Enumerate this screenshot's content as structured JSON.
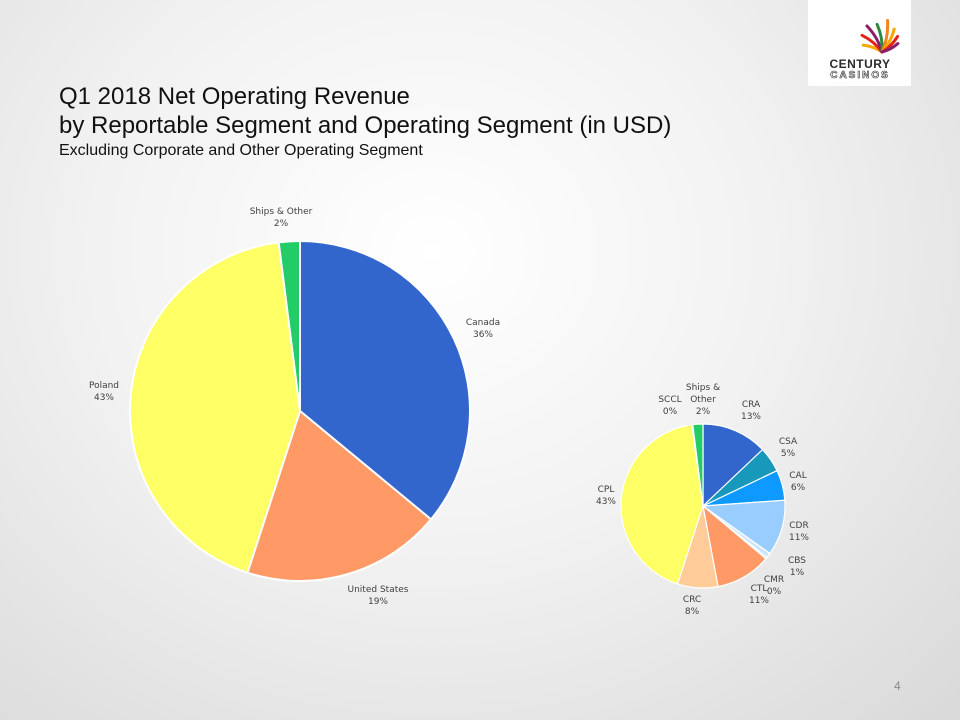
{
  "slide": {
    "title_line1": "Q1 2018 Net Operating Revenue",
    "title_line2": "by Reportable Segment and Operating Segment (in USD)",
    "subtitle": "Excluding Corporate and Other Operating Segment",
    "page_number": "4"
  },
  "logo": {
    "line1": "CENTURY",
    "line2": "CASINOS",
    "colors": [
      "#f7a800",
      "#e2231a",
      "#8b1e6b",
      "#2d8a3e",
      "#f58220"
    ]
  },
  "chart_data": [
    {
      "type": "pie",
      "title": "",
      "slices": [
        {
          "label": "Canada",
          "display": "36%",
          "value": 36,
          "color": "#3366cc"
        },
        {
          "label": "United States",
          "display": "19%",
          "value": 19,
          "color": "#ff9966"
        },
        {
          "label": "Poland",
          "display": "43%",
          "value": 43,
          "color": "#ffff66"
        },
        {
          "label": "Ships & Other",
          "display": "2%",
          "value": 2,
          "color": "#22cc66"
        }
      ]
    },
    {
      "type": "pie",
      "title": "",
      "slices": [
        {
          "label": "CRA",
          "display": "13%",
          "value": 13,
          "color": "#3366cc"
        },
        {
          "label": "CSA",
          "display": "5%",
          "value": 5,
          "color": "#1899bb"
        },
        {
          "label": "CAL",
          "display": "6%",
          "value": 6,
          "color": "#0d99ff"
        },
        {
          "label": "CDR",
          "display": "11%",
          "value": 11,
          "color": "#99ccff"
        },
        {
          "label": "CBS",
          "display": "1%",
          "value": 1,
          "color": "#cce6ff"
        },
        {
          "label": "CMR",
          "display": "0%",
          "value": 0.3,
          "color": "#ffb38a"
        },
        {
          "label": "CTL",
          "display": "11%",
          "value": 11,
          "color": "#ff9966"
        },
        {
          "label": "CRC",
          "display": "8%",
          "value": 8,
          "color": "#ffcc99"
        },
        {
          "label": "CPL",
          "display": "43%",
          "value": 43,
          "color": "#ffff66"
        },
        {
          "label": "SCCL",
          "display": "0%",
          "value": 0.2,
          "color": "#e6e600"
        },
        {
          "label": "Ships & Other",
          "display": "2%",
          "value": 2,
          "color": "#22cc66"
        }
      ]
    }
  ]
}
